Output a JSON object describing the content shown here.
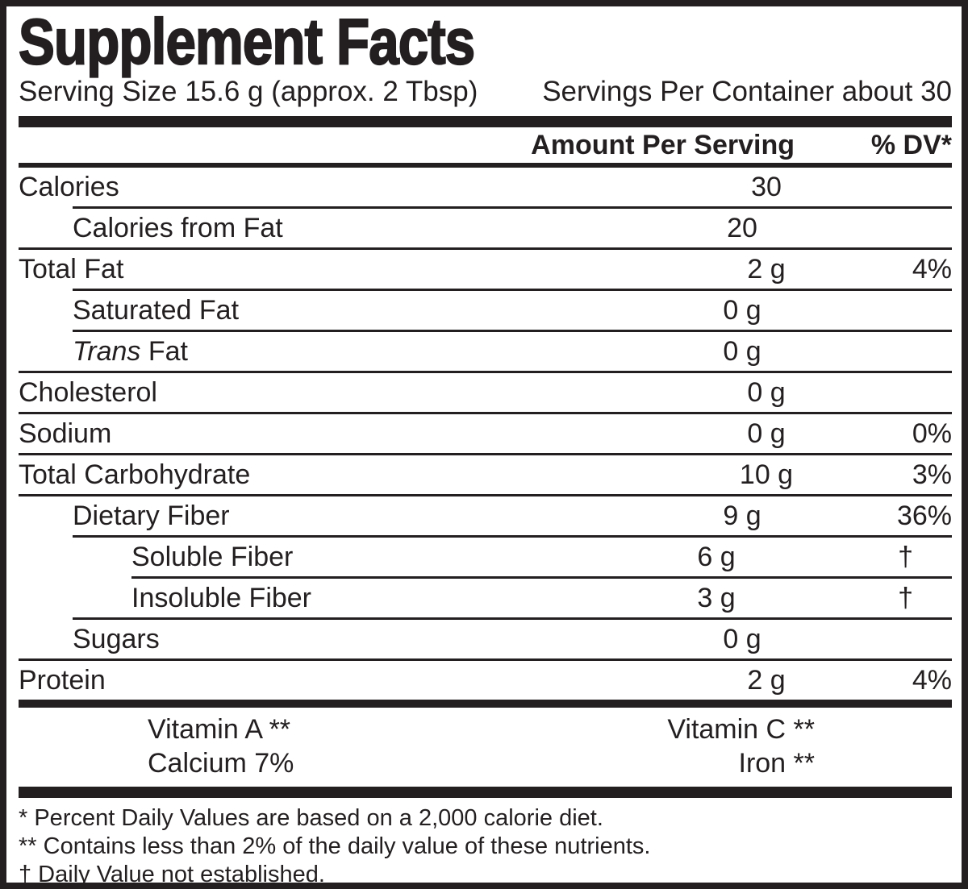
{
  "title": "Supplement Facts",
  "serving": {
    "size": "Serving Size 15.6 g (approx. 2 Tbsp)",
    "per_container": "Servings Per Container about 30"
  },
  "columns": {
    "amount_header": "Amount Per Serving",
    "dv_header": "% DV*"
  },
  "rows": [
    {
      "label": "Calories",
      "amount": "30",
      "dv": ""
    },
    {
      "label": "Calories from Fat",
      "amount": "20",
      "dv": ""
    },
    {
      "label": "Total Fat",
      "amount": "2 g",
      "dv": "4%"
    },
    {
      "label": "Saturated Fat",
      "amount": "0 g",
      "dv": ""
    },
    {
      "label_italic": "Trans",
      "label": " Fat",
      "amount": "0 g",
      "dv": ""
    },
    {
      "label": "Cholesterol",
      "amount": "0 g",
      "dv": ""
    },
    {
      "label": "Sodium",
      "amount": "0 g",
      "dv": "0%"
    },
    {
      "label": "Total Carbohydrate",
      "amount": "10 g",
      "dv": "3%"
    },
    {
      "label": "Dietary Fiber",
      "amount": "9 g",
      "dv": "36%"
    },
    {
      "label": "Soluble Fiber",
      "amount": "6 g",
      "dv": "†"
    },
    {
      "label": "Insoluble Fiber",
      "amount": "3 g",
      "dv": "†"
    },
    {
      "label": "Sugars",
      "amount": "0 g",
      "dv": ""
    },
    {
      "label": "Protein",
      "amount": "2 g",
      "dv": "4%"
    }
  ],
  "micronutrients": [
    {
      "left": "Vitamin A **",
      "right": "Vitamin C **"
    },
    {
      "left": "Calcium 7%",
      "right": "Iron **"
    }
  ],
  "footnotes": [
    "* Percent Daily Values are based on a 2,000 calorie diet.",
    "** Contains less than 2% of the daily value of these nutrients.",
    "† Daily Value not established."
  ],
  "colors": {
    "ink": "#231f20",
    "paper": "#ffffff"
  }
}
